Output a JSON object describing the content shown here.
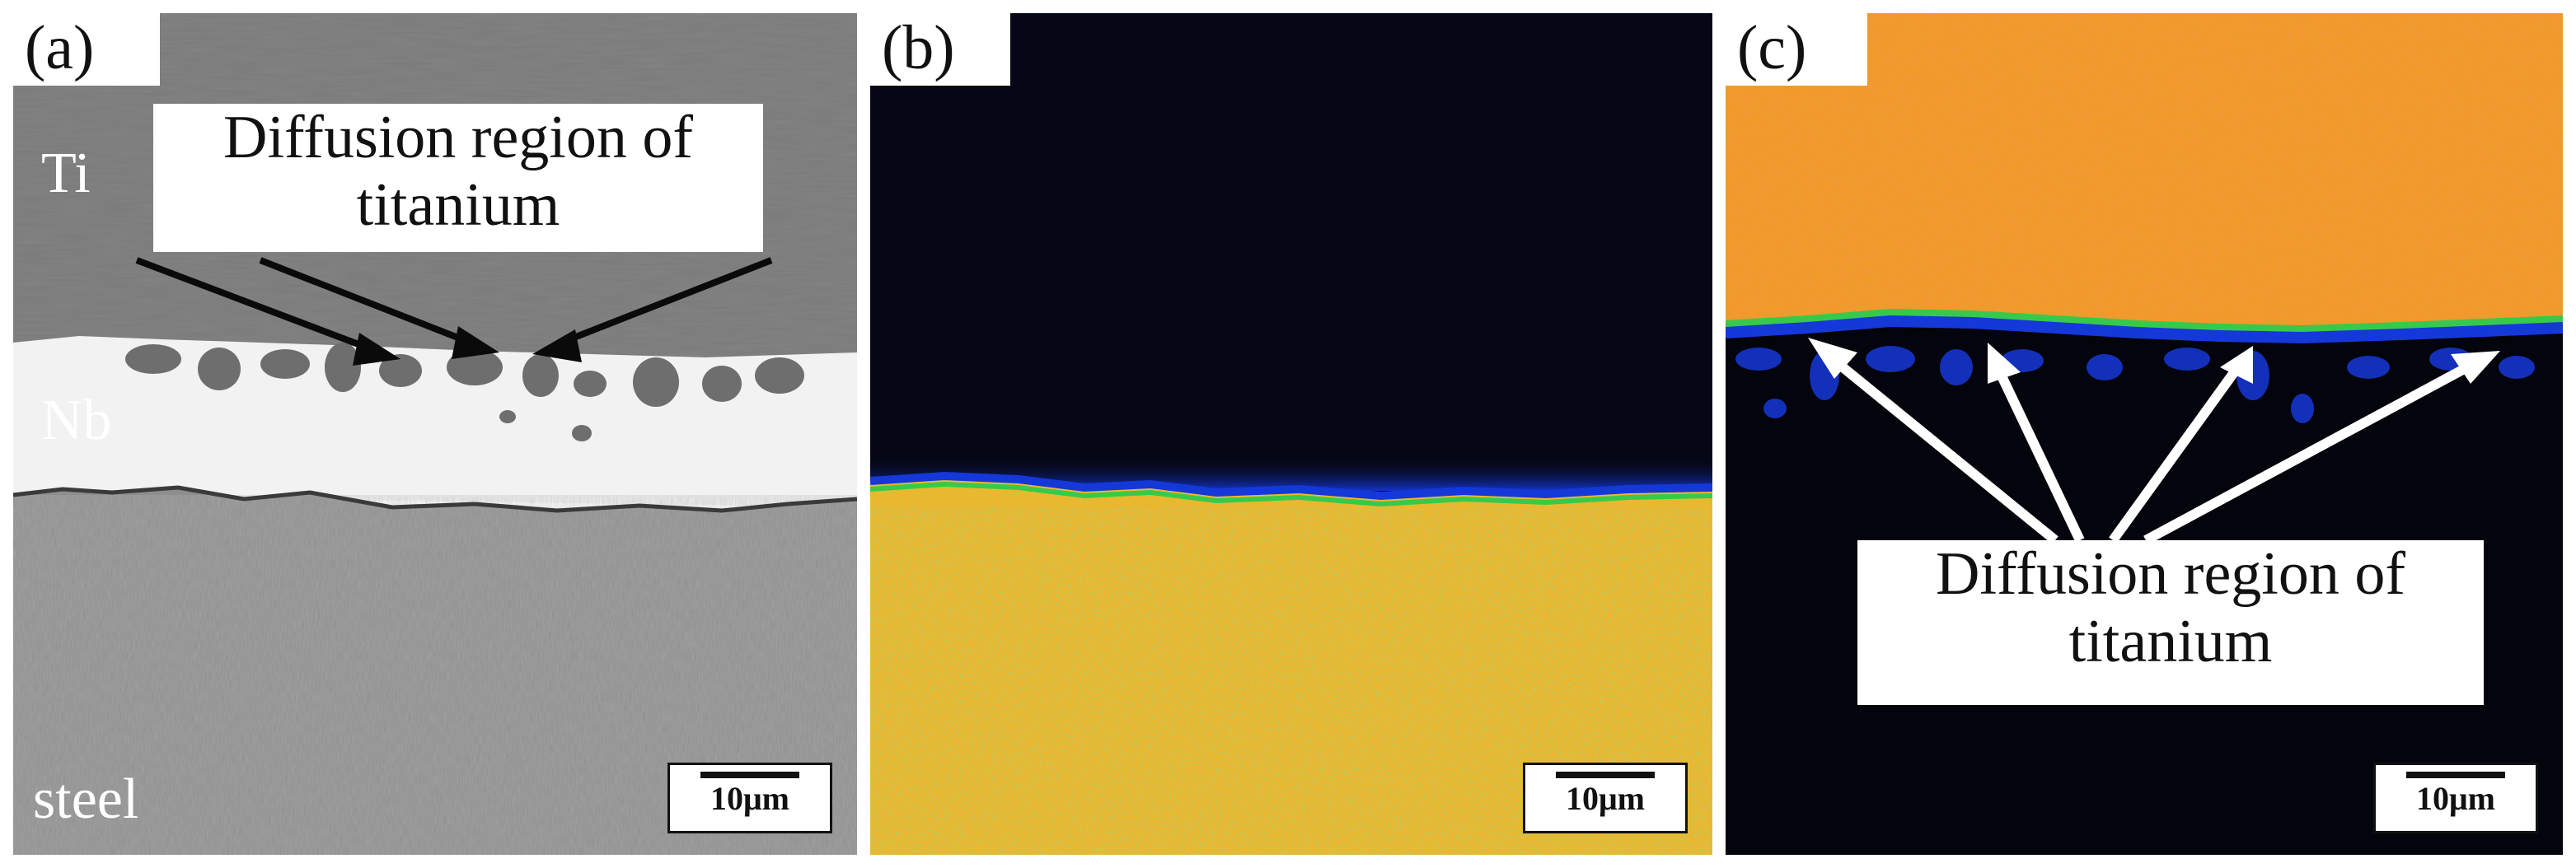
{
  "panels": [
    {
      "label": "(a)",
      "scale_bar": "10μm",
      "layers": [
        "Ti",
        "Nb",
        "steel"
      ],
      "callout": {
        "line1": "Diffusion region of",
        "line2": "titanium"
      }
    },
    {
      "label": "(b)",
      "scale_bar": "10μm"
    },
    {
      "label": "(c)",
      "scale_bar": "10μm",
      "callout": {
        "line1": "Diffusion region of",
        "line2": "titanium"
      }
    }
  ],
  "colors": {
    "ti_gray": "#7b7b7b",
    "nb_white": "#f0f0f0",
    "steel_gray": "#8c8c8c",
    "map_background": "#050716",
    "map_yellow": "#e8b930",
    "map_green": "#39c94a",
    "map_blue": "#1538d8",
    "map_orange": "#ef9a2a"
  }
}
